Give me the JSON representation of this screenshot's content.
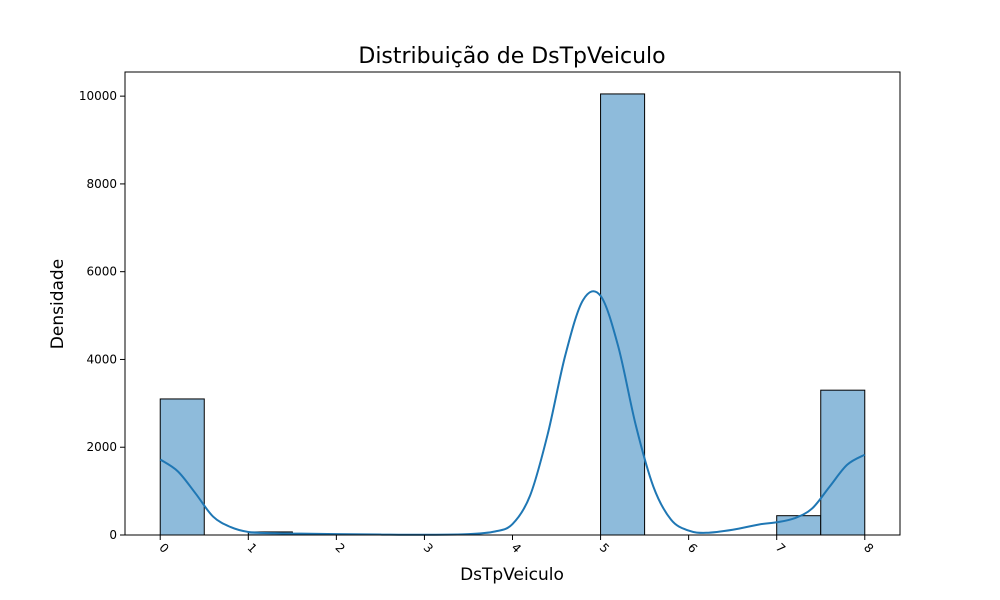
{
  "chart_data": {
    "type": "bar",
    "title": "Distribuição de DsTpVeiculo",
    "xlabel": "DsTpVeiculo",
    "ylabel": "Densidade",
    "xlim": [
      -0.4,
      8.4
    ],
    "ylim": [
      0,
      10550
    ],
    "x_ticks": [
      "0",
      "1",
      "2",
      "3",
      "4",
      "5",
      "6",
      "7",
      "8"
    ],
    "y_ticks": [
      "0",
      "2000",
      "4000",
      "6000",
      "8000",
      "10000"
    ],
    "bin_width": 0.5,
    "bars": [
      {
        "x": 0.0,
        "value": 3100
      },
      {
        "x": 0.5,
        "value": 0
      },
      {
        "x": 1.0,
        "value": 70
      },
      {
        "x": 1.5,
        "value": 0
      },
      {
        "x": 2.0,
        "value": 0
      },
      {
        "x": 2.5,
        "value": 0
      },
      {
        "x": 3.0,
        "value": 0
      },
      {
        "x": 3.5,
        "value": 0
      },
      {
        "x": 4.0,
        "value": 0
      },
      {
        "x": 4.5,
        "value": 0
      },
      {
        "x": 5.0,
        "value": 10050
      },
      {
        "x": 5.5,
        "value": 0
      },
      {
        "x": 6.0,
        "value": 0
      },
      {
        "x": 6.5,
        "value": 0
      },
      {
        "x": 7.0,
        "value": 440
      },
      {
        "x": 7.5,
        "value": 3300
      }
    ],
    "kde": {
      "x": [
        0,
        0.2,
        0.4,
        0.6,
        0.8,
        1.0,
        1.3,
        1.6,
        2.0,
        2.5,
        3.0,
        3.5,
        3.8,
        4.0,
        4.2,
        4.4,
        4.6,
        4.8,
        5.0,
        5.2,
        5.4,
        5.6,
        5.8,
        6.0,
        6.2,
        6.5,
        6.8,
        7.0,
        7.2,
        7.4,
        7.6,
        7.8,
        8.0
      ],
      "y": [
        1720,
        1450,
        950,
        420,
        180,
        70,
        40,
        30,
        20,
        10,
        5,
        20,
        80,
        250,
        900,
        2300,
        4100,
        5350,
        5450,
        4300,
        2500,
        1100,
        350,
        100,
        50,
        120,
        240,
        290,
        380,
        600,
        1100,
        1600,
        1830
      ]
    },
    "colors": {
      "bar_fill": "#8ebbdb",
      "bar_edge": "#000000",
      "kde_line": "#1f77b4"
    },
    "grid": false,
    "legend": "none"
  }
}
